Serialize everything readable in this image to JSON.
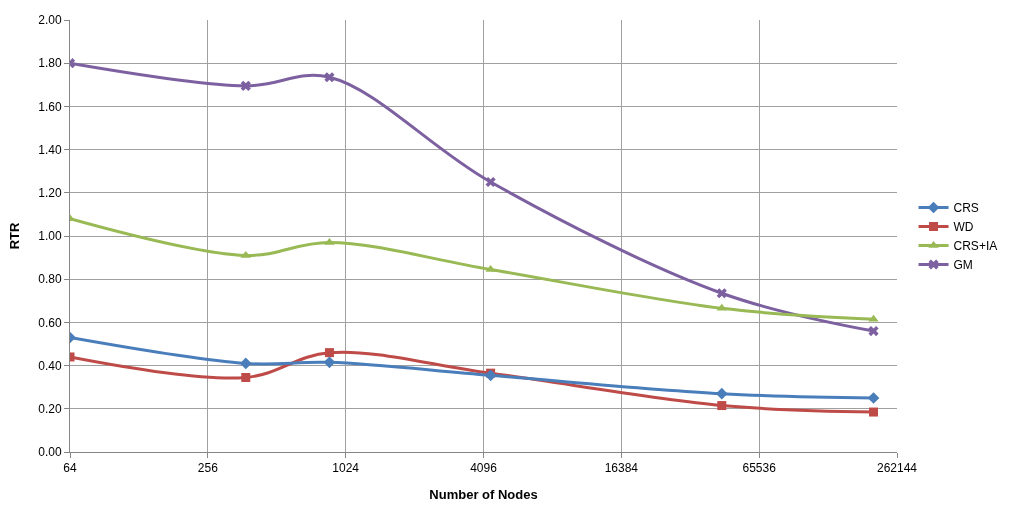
{
  "chart_data": {
    "type": "line",
    "xlabel": "Number of Nodes",
    "ylabel": "RTR",
    "log": "x",
    "x": [
      64,
      375,
      870,
      4400,
      45000,
      207000
    ],
    "xlim": [
      64,
      262144
    ],
    "xticks": [
      64,
      256,
      1024,
      4096,
      16384,
      65536,
      262144
    ],
    "ylim": [
      0,
      2
    ],
    "yticks": [
      {
        "value": 0,
        "label": "0.00"
      },
      {
        "value": 0.2,
        "label": "0.20"
      },
      {
        "value": 0.4,
        "label": "0.40"
      },
      {
        "value": 0.6,
        "label": "0.60"
      },
      {
        "value": 0.8,
        "label": "0.80"
      },
      {
        "value": 1,
        "label": "1.00"
      },
      {
        "value": 1.2,
        "label": "1.20"
      },
      {
        "value": 1.4,
        "label": "1.40"
      },
      {
        "value": 1.6,
        "label": "1.60"
      },
      {
        "value": 1.8,
        "label": "1.80"
      },
      {
        "value": 2,
        "label": "2.00"
      }
    ],
    "grid": true,
    "legend": "right",
    "series": [
      {
        "name": "CRS",
        "color": "#4a7ebb",
        "marker": "diamond",
        "values": [
          0.53,
          0.41,
          0.415,
          0.355,
          0.27,
          0.25
        ]
      },
      {
        "name": "WD",
        "color": "#be4b48",
        "marker": "square",
        "values": [
          0.44,
          0.345,
          0.46,
          0.365,
          0.215,
          0.185
        ]
      },
      {
        "name": "CRS+IA",
        "color": "#98b954",
        "marker": "triangle",
        "values": [
          1.08,
          0.91,
          0.97,
          0.845,
          0.665,
          0.615
        ]
      },
      {
        "name": "GM",
        "color": "#7d60a0",
        "marker": "cross",
        "values": [
          1.8,
          1.695,
          1.735,
          1.25,
          0.735,
          0.56
        ]
      }
    ]
  }
}
